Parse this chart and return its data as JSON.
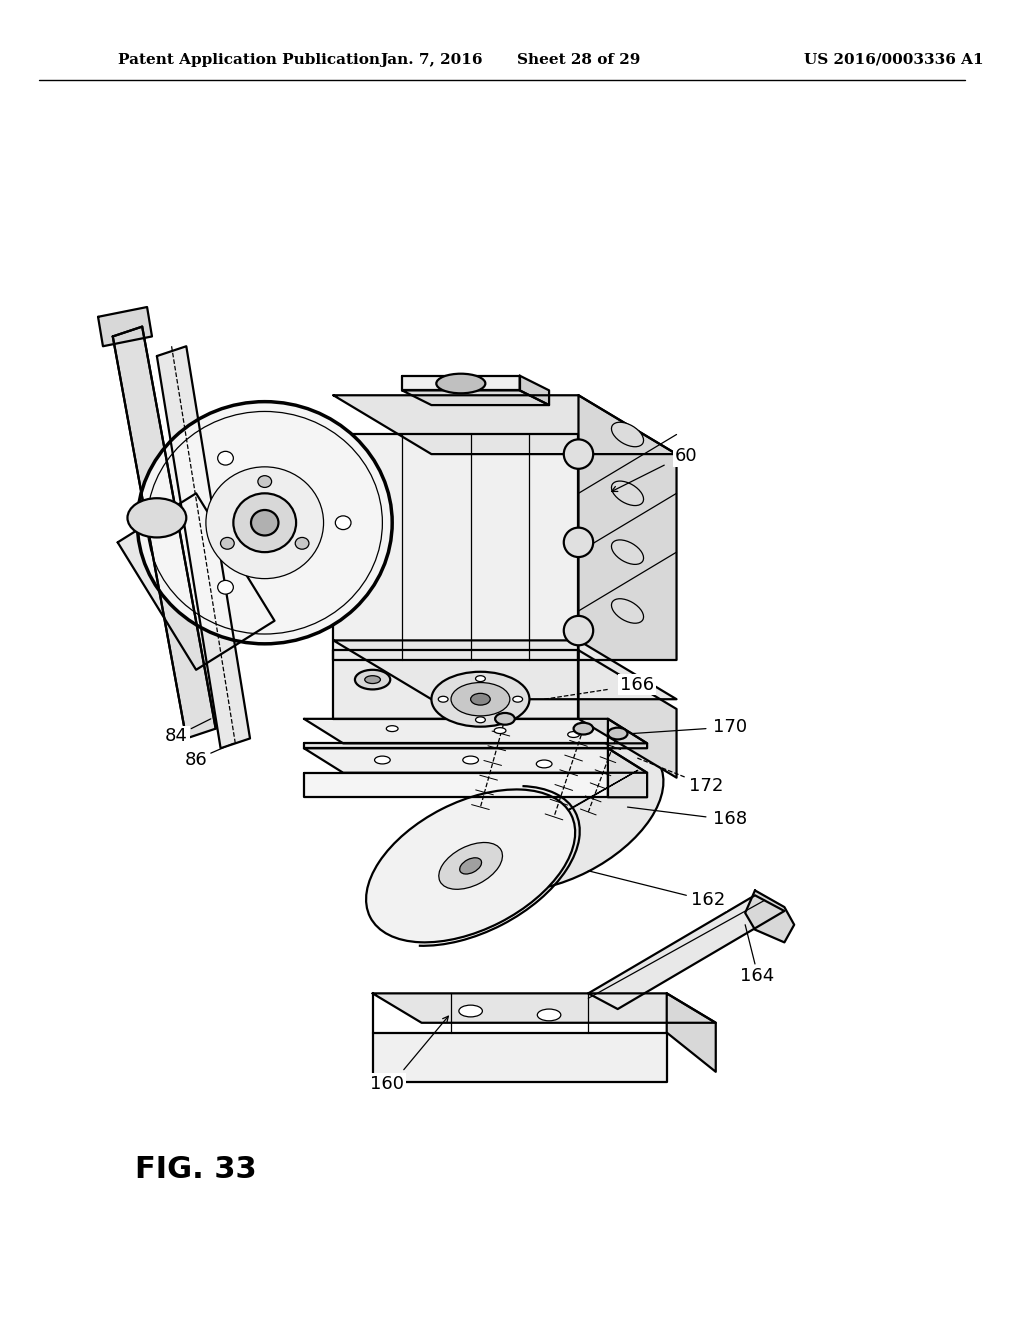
{
  "header_left": "Patent Application Publication",
  "header_mid": "Jan. 7, 2016",
  "header_sheet": "Sheet 28 of 29",
  "header_right": "US 2016/0003336 A1",
  "fig_label": "FIG. 33",
  "background": "#ffffff",
  "ink": "#000000"
}
